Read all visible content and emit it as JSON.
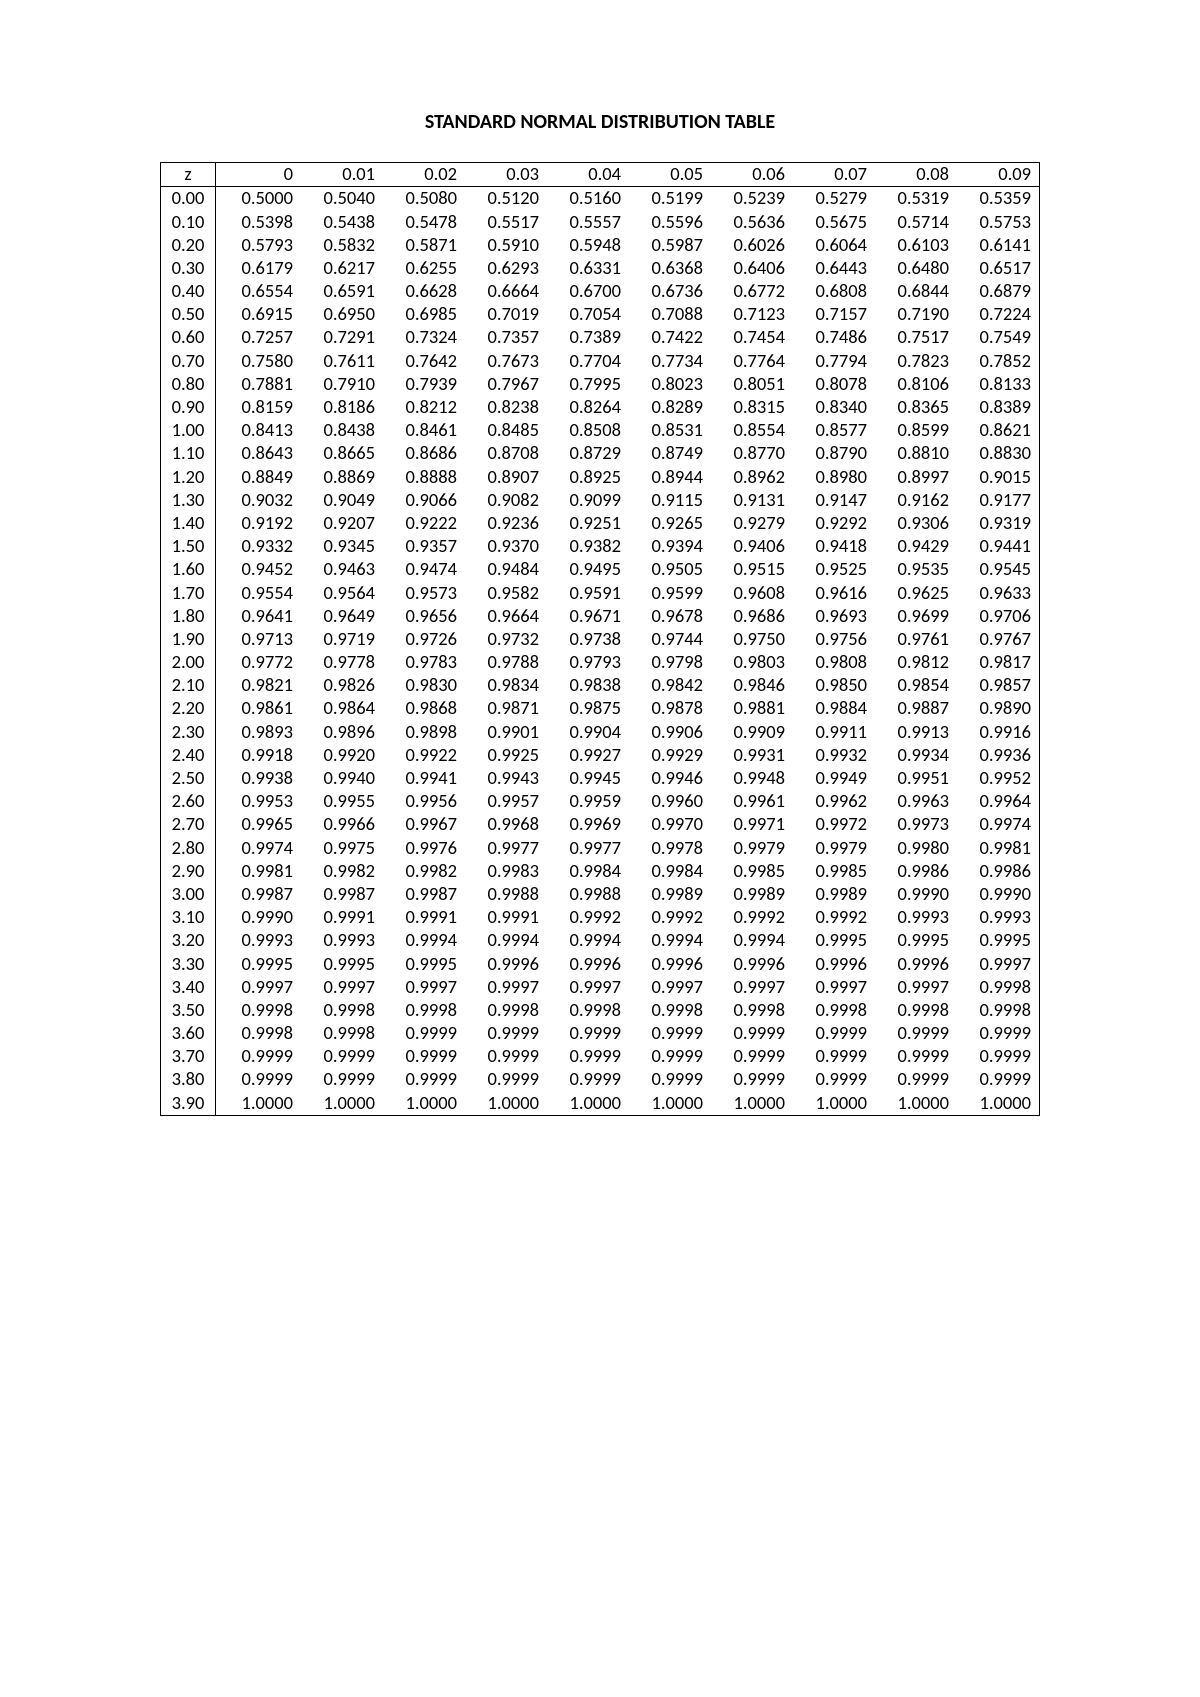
{
  "title": "STANDARD NORMAL DISTRIBUTION TABLE",
  "table": {
    "type": "table",
    "corner_label": "z",
    "columns": [
      "0",
      "0.01",
      "0.02",
      "0.03",
      "0.04",
      "0.05",
      "0.06",
      "0.07",
      "0.08",
      "0.09"
    ],
    "row_labels": [
      "0.00",
      "0.10",
      "0.20",
      "0.30",
      "0.40",
      "0.50",
      "0.60",
      "0.70",
      "0.80",
      "0.90",
      "1.00",
      "1.10",
      "1.20",
      "1.30",
      "1.40",
      "1.50",
      "1.60",
      "1.70",
      "1.80",
      "1.90",
      "2.00",
      "2.10",
      "2.20",
      "2.30",
      "2.40",
      "2.50",
      "2.60",
      "2.70",
      "2.80",
      "2.90",
      "3.00",
      "3.10",
      "3.20",
      "3.30",
      "3.40",
      "3.50",
      "3.60",
      "3.70",
      "3.80",
      "3.90"
    ],
    "rows": [
      [
        "0.5000",
        "0.5040",
        "0.5080",
        "0.5120",
        "0.5160",
        "0.5199",
        "0.5239",
        "0.5279",
        "0.5319",
        "0.5359"
      ],
      [
        "0.5398",
        "0.5438",
        "0.5478",
        "0.5517",
        "0.5557",
        "0.5596",
        "0.5636",
        "0.5675",
        "0.5714",
        "0.5753"
      ],
      [
        "0.5793",
        "0.5832",
        "0.5871",
        "0.5910",
        "0.5948",
        "0.5987",
        "0.6026",
        "0.6064",
        "0.6103",
        "0.6141"
      ],
      [
        "0.6179",
        "0.6217",
        "0.6255",
        "0.6293",
        "0.6331",
        "0.6368",
        "0.6406",
        "0.6443",
        "0.6480",
        "0.6517"
      ],
      [
        "0.6554",
        "0.6591",
        "0.6628",
        "0.6664",
        "0.6700",
        "0.6736",
        "0.6772",
        "0.6808",
        "0.6844",
        "0.6879"
      ],
      [
        "0.6915",
        "0.6950",
        "0.6985",
        "0.7019",
        "0.7054",
        "0.7088",
        "0.7123",
        "0.7157",
        "0.7190",
        "0.7224"
      ],
      [
        "0.7257",
        "0.7291",
        "0.7324",
        "0.7357",
        "0.7389",
        "0.7422",
        "0.7454",
        "0.7486",
        "0.7517",
        "0.7549"
      ],
      [
        "0.7580",
        "0.7611",
        "0.7642",
        "0.7673",
        "0.7704",
        "0.7734",
        "0.7764",
        "0.7794",
        "0.7823",
        "0.7852"
      ],
      [
        "0.7881",
        "0.7910",
        "0.7939",
        "0.7967",
        "0.7995",
        "0.8023",
        "0.8051",
        "0.8078",
        "0.8106",
        "0.8133"
      ],
      [
        "0.8159",
        "0.8186",
        "0.8212",
        "0.8238",
        "0.8264",
        "0.8289",
        "0.8315",
        "0.8340",
        "0.8365",
        "0.8389"
      ],
      [
        "0.8413",
        "0.8438",
        "0.8461",
        "0.8485",
        "0.8508",
        "0.8531",
        "0.8554",
        "0.8577",
        "0.8599",
        "0.8621"
      ],
      [
        "0.8643",
        "0.8665",
        "0.8686",
        "0.8708",
        "0.8729",
        "0.8749",
        "0.8770",
        "0.8790",
        "0.8810",
        "0.8830"
      ],
      [
        "0.8849",
        "0.8869",
        "0.8888",
        "0.8907",
        "0.8925",
        "0.8944",
        "0.8962",
        "0.8980",
        "0.8997",
        "0.9015"
      ],
      [
        "0.9032",
        "0.9049",
        "0.9066",
        "0.9082",
        "0.9099",
        "0.9115",
        "0.9131",
        "0.9147",
        "0.9162",
        "0.9177"
      ],
      [
        "0.9192",
        "0.9207",
        "0.9222",
        "0.9236",
        "0.9251",
        "0.9265",
        "0.9279",
        "0.9292",
        "0.9306",
        "0.9319"
      ],
      [
        "0.9332",
        "0.9345",
        "0.9357",
        "0.9370",
        "0.9382",
        "0.9394",
        "0.9406",
        "0.9418",
        "0.9429",
        "0.9441"
      ],
      [
        "0.9452",
        "0.9463",
        "0.9474",
        "0.9484",
        "0.9495",
        "0.9505",
        "0.9515",
        "0.9525",
        "0.9535",
        "0.9545"
      ],
      [
        "0.9554",
        "0.9564",
        "0.9573",
        "0.9582",
        "0.9591",
        "0.9599",
        "0.9608",
        "0.9616",
        "0.9625",
        "0.9633"
      ],
      [
        "0.9641",
        "0.9649",
        "0.9656",
        "0.9664",
        "0.9671",
        "0.9678",
        "0.9686",
        "0.9693",
        "0.9699",
        "0.9706"
      ],
      [
        "0.9713",
        "0.9719",
        "0.9726",
        "0.9732",
        "0.9738",
        "0.9744",
        "0.9750",
        "0.9756",
        "0.9761",
        "0.9767"
      ],
      [
        "0.9772",
        "0.9778",
        "0.9783",
        "0.9788",
        "0.9793",
        "0.9798",
        "0.9803",
        "0.9808",
        "0.9812",
        "0.9817"
      ],
      [
        "0.9821",
        "0.9826",
        "0.9830",
        "0.9834",
        "0.9838",
        "0.9842",
        "0.9846",
        "0.9850",
        "0.9854",
        "0.9857"
      ],
      [
        "0.9861",
        "0.9864",
        "0.9868",
        "0.9871",
        "0.9875",
        "0.9878",
        "0.9881",
        "0.9884",
        "0.9887",
        "0.9890"
      ],
      [
        "0.9893",
        "0.9896",
        "0.9898",
        "0.9901",
        "0.9904",
        "0.9906",
        "0.9909",
        "0.9911",
        "0.9913",
        "0.9916"
      ],
      [
        "0.9918",
        "0.9920",
        "0.9922",
        "0.9925",
        "0.9927",
        "0.9929",
        "0.9931",
        "0.9932",
        "0.9934",
        "0.9936"
      ],
      [
        "0.9938",
        "0.9940",
        "0.9941",
        "0.9943",
        "0.9945",
        "0.9946",
        "0.9948",
        "0.9949",
        "0.9951",
        "0.9952"
      ],
      [
        "0.9953",
        "0.9955",
        "0.9956",
        "0.9957",
        "0.9959",
        "0.9960",
        "0.9961",
        "0.9962",
        "0.9963",
        "0.9964"
      ],
      [
        "0.9965",
        "0.9966",
        "0.9967",
        "0.9968",
        "0.9969",
        "0.9970",
        "0.9971",
        "0.9972",
        "0.9973",
        "0.9974"
      ],
      [
        "0.9974",
        "0.9975",
        "0.9976",
        "0.9977",
        "0.9977",
        "0.9978",
        "0.9979",
        "0.9979",
        "0.9980",
        "0.9981"
      ],
      [
        "0.9981",
        "0.9982",
        "0.9982",
        "0.9983",
        "0.9984",
        "0.9984",
        "0.9985",
        "0.9985",
        "0.9986",
        "0.9986"
      ],
      [
        "0.9987",
        "0.9987",
        "0.9987",
        "0.9988",
        "0.9988",
        "0.9989",
        "0.9989",
        "0.9989",
        "0.9990",
        "0.9990"
      ],
      [
        "0.9990",
        "0.9991",
        "0.9991",
        "0.9991",
        "0.9992",
        "0.9992",
        "0.9992",
        "0.9992",
        "0.9993",
        "0.9993"
      ],
      [
        "0.9993",
        "0.9993",
        "0.9994",
        "0.9994",
        "0.9994",
        "0.9994",
        "0.9994",
        "0.9995",
        "0.9995",
        "0.9995"
      ],
      [
        "0.9995",
        "0.9995",
        "0.9995",
        "0.9996",
        "0.9996",
        "0.9996",
        "0.9996",
        "0.9996",
        "0.9996",
        "0.9997"
      ],
      [
        "0.9997",
        "0.9997",
        "0.9997",
        "0.9997",
        "0.9997",
        "0.9997",
        "0.9997",
        "0.9997",
        "0.9997",
        "0.9998"
      ],
      [
        "0.9998",
        "0.9998",
        "0.9998",
        "0.9998",
        "0.9998",
        "0.9998",
        "0.9998",
        "0.9998",
        "0.9998",
        "0.9998"
      ],
      [
        "0.9998",
        "0.9998",
        "0.9999",
        "0.9999",
        "0.9999",
        "0.9999",
        "0.9999",
        "0.9999",
        "0.9999",
        "0.9999"
      ],
      [
        "0.9999",
        "0.9999",
        "0.9999",
        "0.9999",
        "0.9999",
        "0.9999",
        "0.9999",
        "0.9999",
        "0.9999",
        "0.9999"
      ],
      [
        "0.9999",
        "0.9999",
        "0.9999",
        "0.9999",
        "0.9999",
        "0.9999",
        "0.9999",
        "0.9999",
        "0.9999",
        "0.9999"
      ],
      [
        "1.0000",
        "1.0000",
        "1.0000",
        "1.0000",
        "1.0000",
        "1.0000",
        "1.0000",
        "1.0000",
        "1.0000",
        "1.0000"
      ]
    ],
    "border_color": "#000000",
    "background_color": "#ffffff",
    "font_family": "Calibri",
    "font_size_pt": 14,
    "title_font_size_pt": 15,
    "cell_align": "right",
    "row_label_align": "center"
  }
}
